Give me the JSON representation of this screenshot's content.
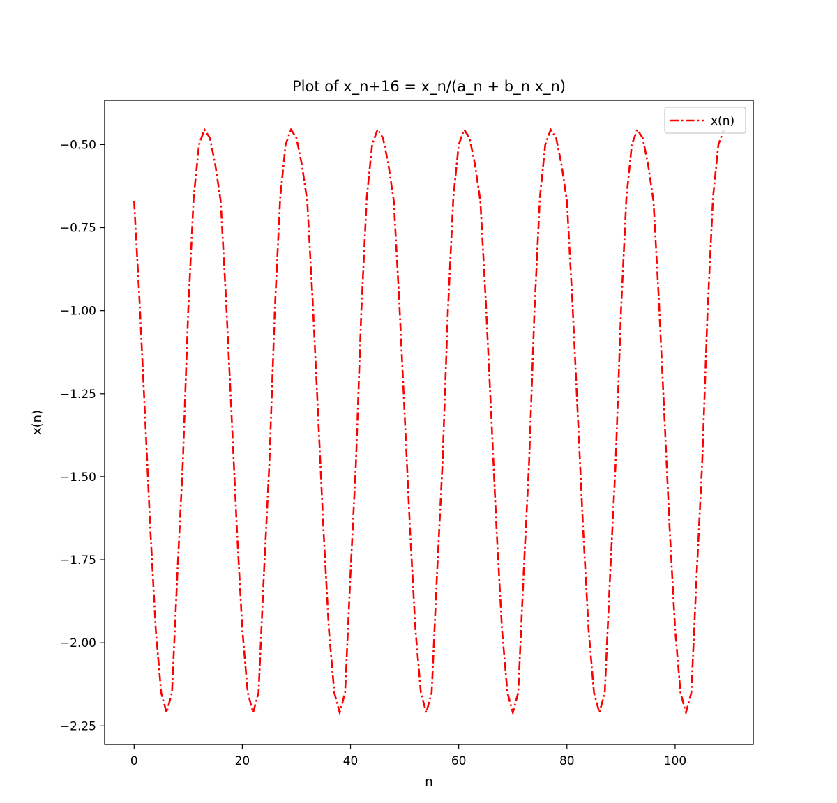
{
  "chart_data": {
    "type": "line",
    "title": "Plot of x_n+16 = x_n/(a_n + b_n x_n)",
    "xlabel": "n",
    "ylabel": "x(n)",
    "xlim": [
      -5.45,
      114.45
    ],
    "ylim": [
      -2.306,
      -0.367
    ],
    "xticks": [
      0,
      20,
      40,
      60,
      80,
      100
    ],
    "xtick_labels": [
      "0",
      "20",
      "40",
      "60",
      "80",
      "100"
    ],
    "yticks": [
      -2.25,
      -2.0,
      -1.75,
      -1.5,
      -1.25,
      -1.0,
      -0.75,
      -0.5
    ],
    "ytick_labels": [
      "−2.25",
      "−2.00",
      "−1.75",
      "−1.50",
      "−1.25",
      "−1.00",
      "−0.75",
      "−0.50"
    ],
    "grid": false,
    "legend_position": "top-right",
    "series": [
      {
        "name": "x(n)",
        "color": "#ff0000",
        "linestyle": "dashdot",
        "x": [
          0,
          1,
          2,
          3,
          4,
          5,
          6,
          7,
          8,
          9,
          10,
          11,
          12,
          13,
          14,
          15,
          16,
          17,
          18,
          19,
          20,
          21,
          22,
          23,
          24,
          25,
          26,
          27,
          28,
          29,
          30,
          31,
          32,
          33,
          34,
          35,
          36,
          37,
          38,
          39,
          40,
          41,
          42,
          43,
          44,
          45,
          46,
          47,
          48,
          49,
          50,
          51,
          52,
          53,
          54,
          55,
          56,
          57,
          58,
          59,
          60,
          61,
          62,
          63,
          64,
          65,
          66,
          67,
          68,
          69,
          70,
          71,
          72,
          73,
          74,
          75,
          76,
          77,
          78,
          79,
          80,
          81,
          82,
          83,
          84,
          85,
          86,
          87,
          88,
          89,
          90,
          91,
          92,
          93,
          94,
          95,
          96,
          97,
          98,
          99,
          100,
          101,
          102,
          103,
          104,
          105,
          106,
          107,
          108,
          109
        ],
        "y": [
          -0.67,
          -0.97,
          -1.31,
          -1.66,
          -1.96,
          -2.15,
          -2.21,
          -2.15,
          -1.79,
          -1.46,
          -1.0,
          -0.66,
          -0.5,
          -0.455,
          -0.48,
          -0.56,
          -0.67,
          -0.97,
          -1.31,
          -1.66,
          -1.96,
          -2.15,
          -2.21,
          -2.15,
          -1.79,
          -1.46,
          -1.0,
          -0.66,
          -0.5,
          -0.455,
          -0.48,
          -0.56,
          -0.67,
          -0.97,
          -1.31,
          -1.66,
          -1.96,
          -2.15,
          -2.21,
          -2.15,
          -1.79,
          -1.46,
          -1.0,
          -0.66,
          -0.5,
          -0.455,
          -0.48,
          -0.56,
          -0.67,
          -0.97,
          -1.31,
          -1.66,
          -1.96,
          -2.15,
          -2.21,
          -2.15,
          -1.79,
          -1.46,
          -1.0,
          -0.66,
          -0.5,
          -0.455,
          -0.48,
          -0.56,
          -0.67,
          -0.97,
          -1.31,
          -1.66,
          -1.96,
          -2.15,
          -2.21,
          -2.15,
          -1.79,
          -1.46,
          -1.0,
          -0.66,
          -0.5,
          -0.455,
          -0.48,
          -0.56,
          -0.67,
          -0.97,
          -1.31,
          -1.66,
          -1.96,
          -2.15,
          -2.21,
          -2.15,
          -1.79,
          -1.46,
          -1.0,
          -0.66,
          -0.5,
          -0.455,
          -0.48,
          -0.56,
          -0.67,
          -0.97,
          -1.31,
          -1.66,
          -1.96,
          -2.15,
          -2.21,
          -2.15,
          -1.79,
          -1.46,
          -1.0,
          -0.66,
          -0.5,
          -0.455
        ]
      }
    ]
  }
}
